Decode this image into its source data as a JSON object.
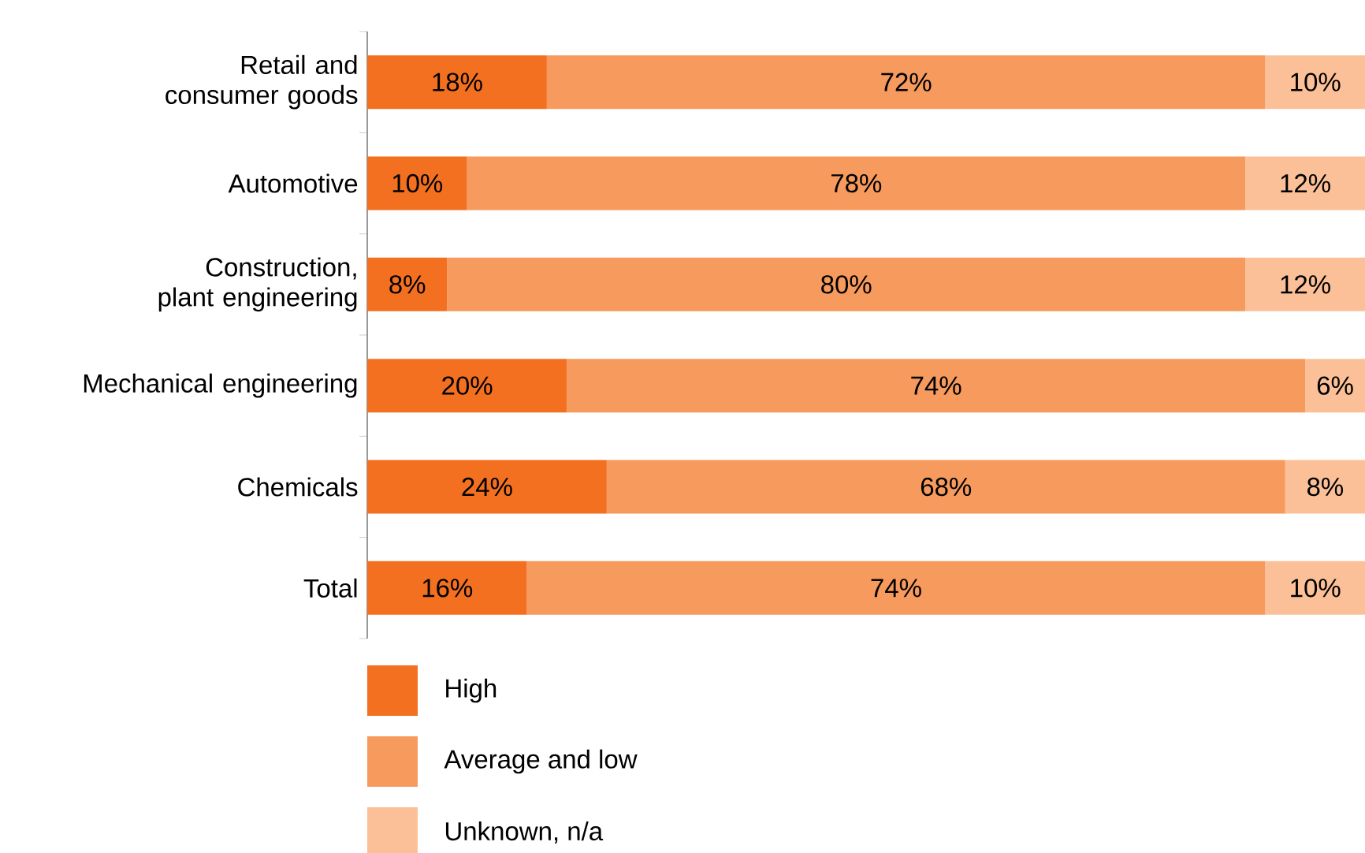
{
  "chart_data": {
    "type": "bar",
    "orientation": "horizontal",
    "stacked": true,
    "legend": "bottom",
    "categories": [
      "Retail and consumer goods",
      "Automotive",
      "Construction, plant engineering",
      "Mechanical engineering",
      "Chemicals",
      "Total"
    ],
    "series": [
      {
        "name": "High",
        "color": "#f37021",
        "values": [
          18,
          10,
          8,
          20,
          24,
          16
        ],
        "value_labels": [
          "18%",
          "10%",
          "8%",
          "20%",
          "24%",
          "16%"
        ]
      },
      {
        "name": "Average and low",
        "color": "#f69a5d",
        "values": [
          72,
          78,
          80,
          74,
          68,
          74
        ],
        "value_labels": [
          "72%",
          "78%",
          "80%",
          "74%",
          "68%",
          "74%"
        ]
      },
      {
        "name": "Unknown, n/a",
        "color": "#fbc097",
        "values": [
          10,
          12,
          12,
          6,
          8,
          10
        ],
        "value_labels": [
          "10%",
          "12%",
          "12%",
          "6%",
          "8%",
          "10%"
        ]
      }
    ]
  }
}
